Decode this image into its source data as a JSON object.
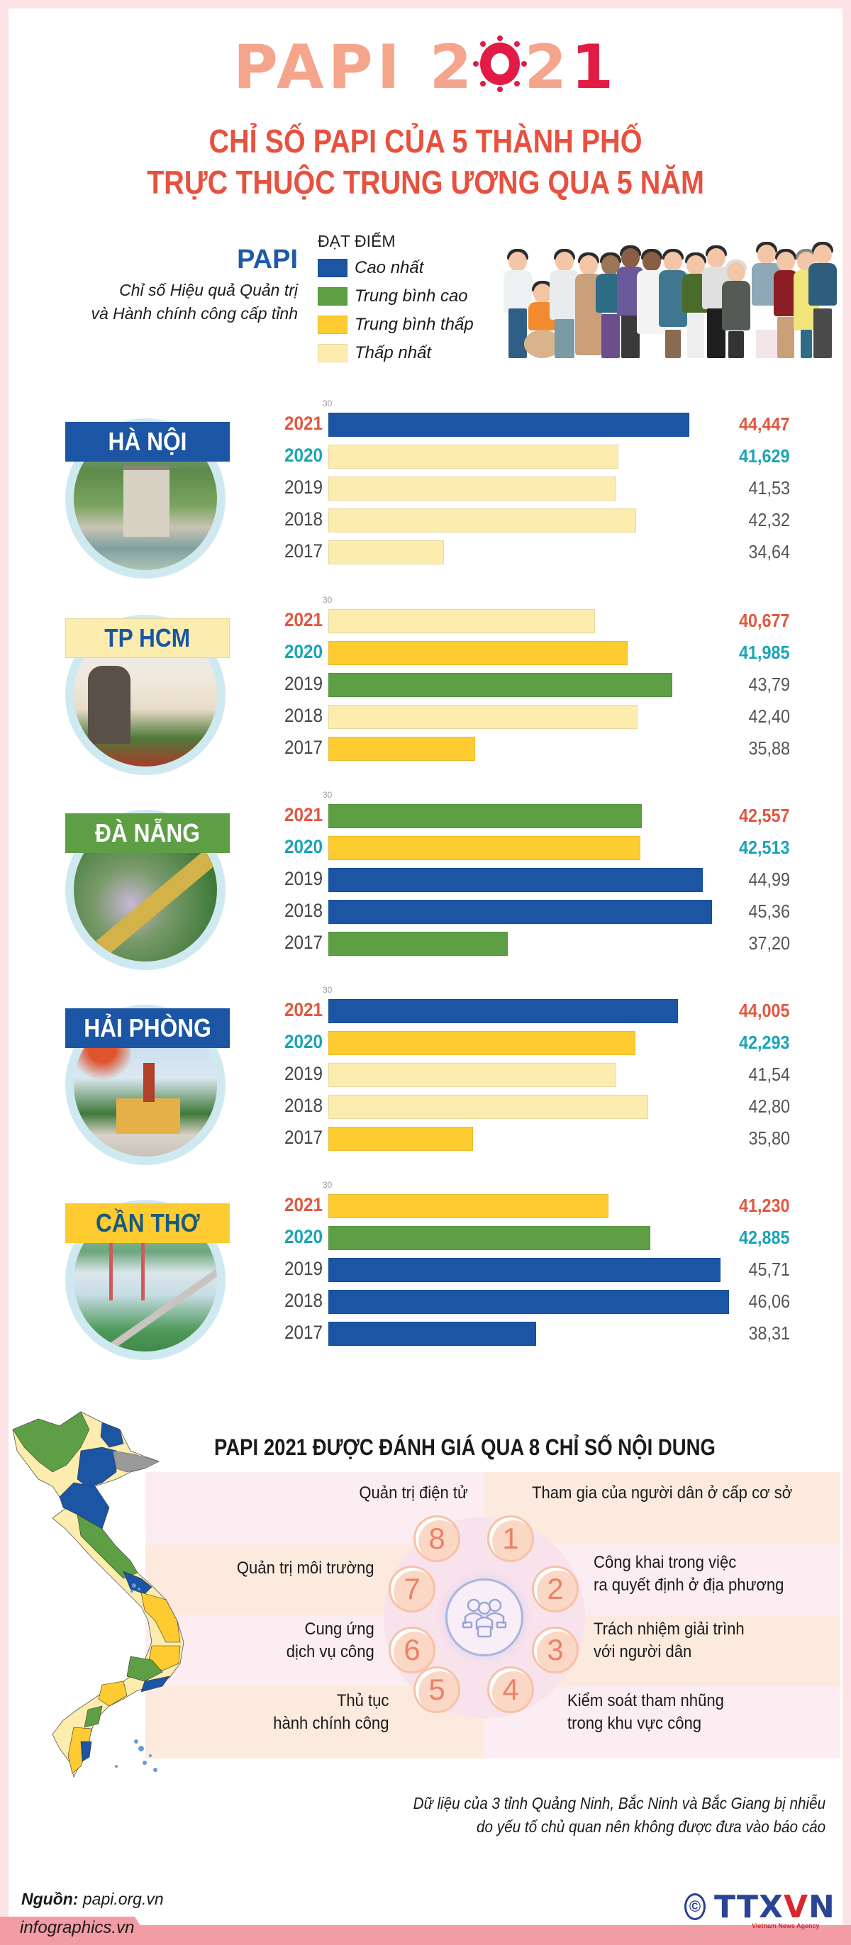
{
  "header": {
    "title_prefix": "PAPI 2",
    "title_zero": "0",
    "title_suffix": "2",
    "title_one": "1",
    "title_full": "PAPI 2021",
    "subtitle_line1": "CHỈ SỐ PAPI CỦA 5 THÀNH PHỐ",
    "subtitle_line2": "TRỰC THUỘC TRUNG ƯƠNG QUA 5 NĂM"
  },
  "intro": {
    "papi": "PAPI",
    "desc_line1": "Chỉ số Hiệu quả Quản trị",
    "desc_line2": "và Hành chính công cấp tỉnh"
  },
  "legend": {
    "title": "ĐẠT ĐIỂM",
    "items": [
      {
        "label": "Cao nhất",
        "color": "#1b55a3"
      },
      {
        "label": "Trung bình cao",
        "color": "#5e9f45"
      },
      {
        "label": "Trung bình thấp",
        "color": "#fecb31"
      },
      {
        "label": "Thấp nhất",
        "color": "#fcedae"
      }
    ]
  },
  "colors": {
    "cao_nhat": "#1b55a3",
    "trung_binh_cao": "#5e9f45",
    "trung_binh_thap": "#fecb31",
    "thap_nhat": "#fcedae",
    "title_pink": "#f4a58c",
    "title_red": "#e8513f",
    "year_2021": "#e2573f",
    "year_2020": "#1aa4b8"
  },
  "chart_data": {
    "type": "bar",
    "orientation": "horizontal",
    "title": "Chỉ số PAPI của 5 thành phố trực thuộc Trung ương qua 5 năm",
    "xlabel": "",
    "ylabel": "",
    "axis_start_label": "30",
    "xlim": [
      30,
      47
    ],
    "grid": false,
    "legend_position": "top",
    "legend": [
      "Cao nhất",
      "Trung bình cao",
      "Trung bình thấp",
      "Thấp nhất"
    ],
    "categories": [
      "2021",
      "2020",
      "2019",
      "2018",
      "2017"
    ],
    "series": [
      {
        "name": "HÀ NỘI",
        "values": [
          44.447,
          41.629,
          41.53,
          42.32,
          34.64
        ],
        "labels": [
          "44,447",
          "41,629",
          "41,53",
          "42,32",
          "34,64"
        ],
        "tiers": [
          "Cao nhất",
          "Thấp nhất",
          "Thấp nhất",
          "Thấp nhất",
          "Thấp nhất"
        ]
      },
      {
        "name": "TP HCM",
        "values": [
          40.677,
          41.985,
          43.79,
          42.4,
          35.88
        ],
        "labels": [
          "40,677",
          "41,985",
          "43,79",
          "42,40",
          "35,88"
        ],
        "tiers": [
          "Thấp nhất",
          "Trung bình thấp",
          "Trung bình cao",
          "Thấp nhất",
          "Trung bình thấp"
        ]
      },
      {
        "name": "ĐÀ NẴNG",
        "values": [
          42.557,
          42.513,
          44.99,
          45.36,
          37.2
        ],
        "labels": [
          "42,557",
          "42,513",
          "44,99",
          "45,36",
          "37,20"
        ],
        "tiers": [
          "Trung bình cao",
          "Trung bình thấp",
          "Cao nhất",
          "Cao nhất",
          "Trung bình cao"
        ]
      },
      {
        "name": "HẢI PHÒNG",
        "values": [
          44.005,
          42.293,
          41.54,
          42.8,
          35.8
        ],
        "labels": [
          "44,005",
          "42,293",
          "41,54",
          "42,80",
          "35,80"
        ],
        "tiers": [
          "Cao nhất",
          "Trung bình thấp",
          "Thấp nhất",
          "Thấp nhất",
          "Trung bình thấp"
        ]
      },
      {
        "name": "CẦN THƠ",
        "values": [
          41.23,
          42.885,
          45.71,
          46.06,
          38.31
        ],
        "labels": [
          "41,230",
          "42,885",
          "45,71",
          "46,06",
          "38,31"
        ],
        "tiers": [
          "Trung bình thấp",
          "Trung bình cao",
          "Cao nhất",
          "Cao nhất",
          "Cao nhất"
        ]
      }
    ]
  },
  "cities": [
    {
      "name": "HÀ NỘI",
      "label_bg": "#1b55a3",
      "label_color": "#ffffff",
      "axis_tick": "30",
      "rows": [
        {
          "year": "2021",
          "value": "44,447",
          "num": 44.447,
          "color": "#1b55a3"
        },
        {
          "year": "2020",
          "value": "41,629",
          "num": 41.629,
          "color": "#fcedae"
        },
        {
          "year": "2019",
          "value": "41,53",
          "num": 41.53,
          "color": "#fcedae"
        },
        {
          "year": "2018",
          "value": "42,32",
          "num": 42.32,
          "color": "#fcedae"
        },
        {
          "year": "2017",
          "value": "34,64",
          "num": 34.64,
          "color": "#fcedae"
        }
      ]
    },
    {
      "name": "TP HCM",
      "label_bg": "#fcedae",
      "label_color": "#1b55a3",
      "axis_tick": "30",
      "rows": [
        {
          "year": "2021",
          "value": "40,677",
          "num": 40.677,
          "color": "#fcedae"
        },
        {
          "year": "2020",
          "value": "41,985",
          "num": 41.985,
          "color": "#fecb31"
        },
        {
          "year": "2019",
          "value": "43,79",
          "num": 43.79,
          "color": "#5e9f45"
        },
        {
          "year": "2018",
          "value": "42,40",
          "num": 42.4,
          "color": "#fcedae"
        },
        {
          "year": "2017",
          "value": "35,88",
          "num": 35.88,
          "color": "#fecb31"
        }
      ]
    },
    {
      "name": "ĐÀ NẴNG",
      "label_bg": "#5e9f45",
      "label_color": "#ffffff",
      "axis_tick": "30",
      "rows": [
        {
          "year": "2021",
          "value": "42,557",
          "num": 42.557,
          "color": "#5e9f45"
        },
        {
          "year": "2020",
          "value": "42,513",
          "num": 42.513,
          "color": "#fecb31"
        },
        {
          "year": "2019",
          "value": "44,99",
          "num": 44.99,
          "color": "#1b55a3"
        },
        {
          "year": "2018",
          "value": "45,36",
          "num": 45.36,
          "color": "#1b55a3"
        },
        {
          "year": "2017",
          "value": "37,20",
          "num": 37.2,
          "color": "#5e9f45"
        }
      ]
    },
    {
      "name": "HẢI PHÒNG",
      "label_bg": "#1b55a3",
      "label_color": "#ffffff",
      "axis_tick": "30",
      "rows": [
        {
          "year": "2021",
          "value": "44,005",
          "num": 44.005,
          "color": "#1b55a3"
        },
        {
          "year": "2020",
          "value": "42,293",
          "num": 42.293,
          "color": "#fecb31"
        },
        {
          "year": "2019",
          "value": "41,54",
          "num": 41.54,
          "color": "#fcedae"
        },
        {
          "year": "2018",
          "value": "42,80",
          "num": 42.8,
          "color": "#fcedae"
        },
        {
          "year": "2017",
          "value": "35,80",
          "num": 35.8,
          "color": "#fecb31"
        }
      ]
    },
    {
      "name": "CẦN THƠ",
      "label_bg": "#fecb31",
      "label_color": "#1a5a7a",
      "axis_tick": "30",
      "rows": [
        {
          "year": "2021",
          "value": "41,230",
          "num": 41.23,
          "color": "#fecb31"
        },
        {
          "year": "2020",
          "value": "42,885",
          "num": 42.885,
          "color": "#5e9f45"
        },
        {
          "year": "2019",
          "value": "45,71",
          "num": 45.71,
          "color": "#1b55a3"
        },
        {
          "year": "2018",
          "value": "46,06",
          "num": 46.06,
          "color": "#1b55a3"
        },
        {
          "year": "2017",
          "value": "38,31",
          "num": 38.31,
          "color": "#1b55a3"
        }
      ]
    }
  ],
  "indices": {
    "title": "PAPI 2021 ĐƯỢC ĐÁNH GIÁ QUA 8 CHỈ SỐ NỘI DUNG",
    "items": [
      {
        "num": "1",
        "line1": "Tham gia của người dân ở cấp cơ sở",
        "line2": ""
      },
      {
        "num": "2",
        "line1": "Công khai trong việc",
        "line2": "ra quyết định ở địa phương"
      },
      {
        "num": "3",
        "line1": "Trách nhiệm giải trình",
        "line2": "với người dân"
      },
      {
        "num": "4",
        "line1": "Kiểm soát tham nhũng",
        "line2": "trong khu vực công"
      },
      {
        "num": "5",
        "line1": "Thủ tục",
        "line2": "hành chính công"
      },
      {
        "num": "6",
        "line1": "Cung ứng",
        "line2": "dịch vụ công"
      },
      {
        "num": "7",
        "line1": "Quản trị môi trường",
        "line2": ""
      },
      {
        "num": "8",
        "line1": "Quản trị điện tử",
        "line2": ""
      }
    ],
    "center_icon": "people-voting-icon"
  },
  "note": {
    "line1": "Dữ liệu của 3 tỉnh Quảng Ninh, Bắc Ninh và Bắc Giang bị nhiễu",
    "line2": "do yếu tố chủ quan nên không được đưa vào báo cáo"
  },
  "footer": {
    "source_label": "Nguồn:",
    "source_value": "papi.org.vn",
    "site": "infographics.vn",
    "logo_c": "©",
    "logo_main": "TTX",
    "logo_v": "V",
    "logo_n": "N",
    "logo_sub": "Vietnam News Agency"
  }
}
